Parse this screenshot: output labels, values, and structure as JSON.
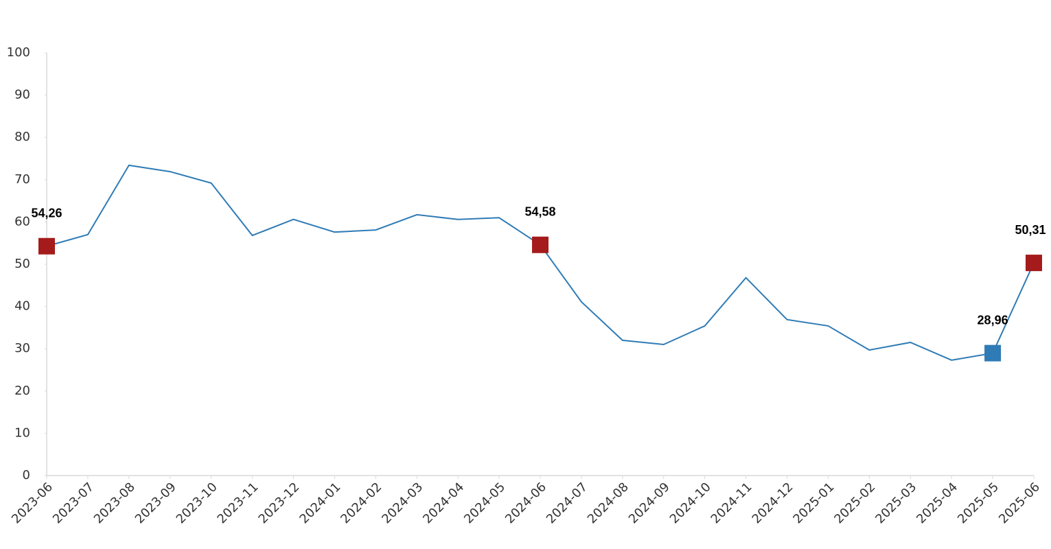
{
  "chart_data": {
    "type": "line",
    "x": [
      "2023-06",
      "2023-07",
      "2023-08",
      "2023-09",
      "2023-10",
      "2023-11",
      "2023-12",
      "2024-01",
      "2024-02",
      "2024-03",
      "2024-04",
      "2024-05",
      "2024-06",
      "2024-07",
      "2024-08",
      "2024-09",
      "2024-10",
      "2024-11",
      "2024-12",
      "2025-01",
      "2025-02",
      "2025-03",
      "2025-04",
      "2025-05",
      "2025-06"
    ],
    "series": [
      {
        "color": "#2e7bb5",
        "values": [
          54.26,
          57.0,
          73.4,
          71.9,
          69.2,
          56.8,
          60.6,
          57.6,
          58.1,
          61.7,
          60.6,
          61.0,
          54.58,
          41.1,
          32.0,
          31.0,
          35.4,
          46.8,
          36.9,
          35.4,
          29.7,
          31.5,
          27.3,
          28.96,
          50.31
        ],
        "value_labels": [
          "54,26",
          null,
          null,
          null,
          null,
          null,
          null,
          null,
          null,
          null,
          null,
          null,
          "54,58",
          null,
          null,
          null,
          null,
          null,
          null,
          null,
          null,
          null,
          null,
          "28,96",
          "50,31"
        ],
        "marker_colors": [
          "#a51b1b",
          null,
          null,
          null,
          null,
          null,
          null,
          null,
          null,
          null,
          null,
          null,
          "#a51b1b",
          null,
          null,
          null,
          null,
          null,
          null,
          null,
          null,
          null,
          null,
          "#2e7bb5",
          "#a51b1b"
        ]
      }
    ],
    "ylim": [
      0,
      100
    ],
    "yticks": [
      0,
      10,
      20,
      30,
      40,
      50,
      60,
      70,
      80,
      90,
      100
    ],
    "grid": false
  }
}
